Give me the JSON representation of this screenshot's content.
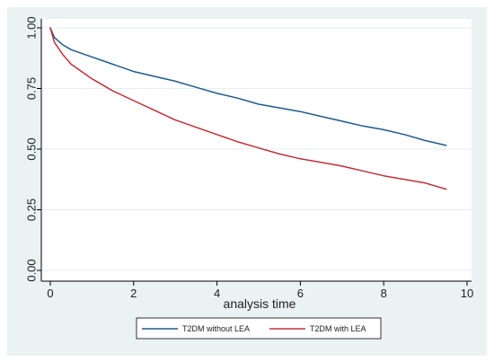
{
  "chart_data": {
    "type": "line",
    "title": "",
    "xlabel": "analysis time",
    "ylabel": "",
    "xlim": [
      0,
      10
    ],
    "ylim": [
      0,
      1
    ],
    "x_ticks": [
      0,
      2,
      4,
      6,
      8,
      10
    ],
    "x_tick_labels": [
      "0",
      "2",
      "4",
      "6",
      "8",
      "10"
    ],
    "y_ticks": [
      0,
      0.25,
      0.5,
      0.75,
      1
    ],
    "y_tick_labels": [
      "0.00",
      "0.25",
      "0.50",
      "0.75",
      "1.00"
    ],
    "grid": "horizontal",
    "legend_position": "bottom",
    "series": [
      {
        "name": "T2DM without LEA",
        "color": "#1f5a8c",
        "x": [
          0,
          0.1,
          0.3,
          0.5,
          1,
          1.5,
          2,
          2.5,
          3,
          3.5,
          4,
          4.5,
          5,
          5.5,
          6,
          6.5,
          7,
          7.5,
          8,
          8.5,
          9,
          9.5
        ],
        "y": [
          1.0,
          0.96,
          0.93,
          0.91,
          0.88,
          0.85,
          0.82,
          0.8,
          0.78,
          0.755,
          0.73,
          0.71,
          0.685,
          0.67,
          0.655,
          0.635,
          0.615,
          0.595,
          0.58,
          0.56,
          0.535,
          0.515
        ]
      },
      {
        "name": "T2DM with LEA",
        "color": "#c0303a",
        "x": [
          0,
          0.1,
          0.3,
          0.5,
          1,
          1.5,
          2,
          2.5,
          3,
          3.5,
          4,
          4.5,
          5,
          5.5,
          6,
          6.5,
          7,
          7.5,
          8,
          8.5,
          9,
          9.5
        ],
        "y": [
          1.0,
          0.94,
          0.89,
          0.85,
          0.79,
          0.74,
          0.7,
          0.66,
          0.62,
          0.59,
          0.56,
          0.53,
          0.505,
          0.48,
          0.46,
          0.445,
          0.43,
          0.41,
          0.39,
          0.375,
          0.36,
          0.335
        ]
      }
    ]
  }
}
